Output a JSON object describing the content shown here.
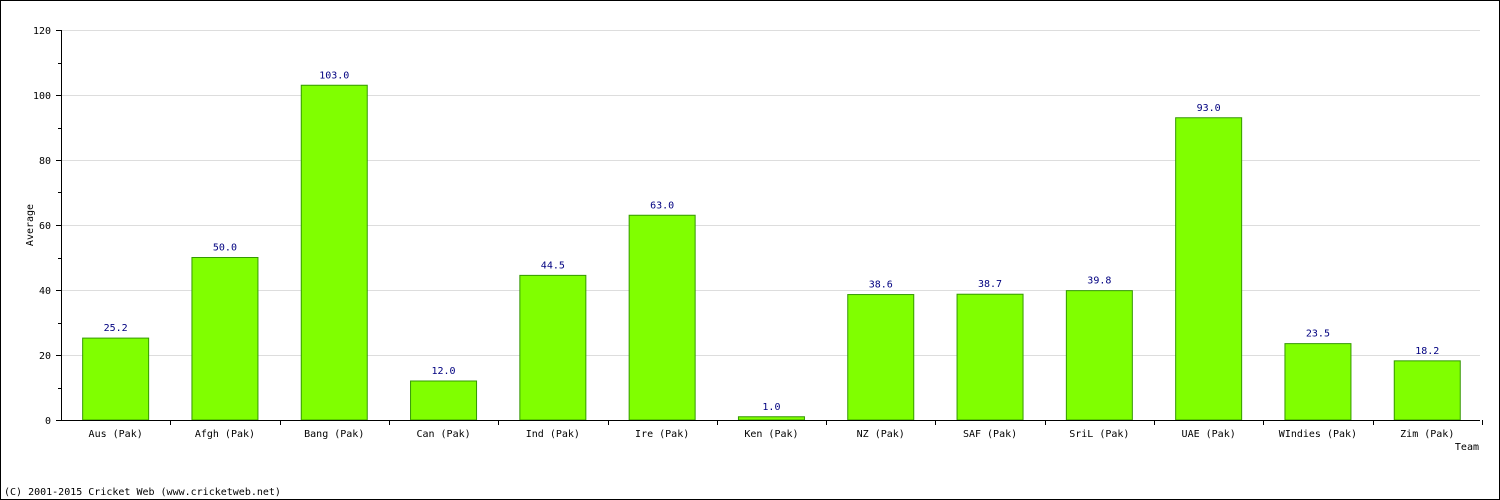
{
  "chart_data": {
    "type": "bar",
    "title": "",
    "xlabel": "Team",
    "ylabel": "Average",
    "ylim": [
      0,
      120
    ],
    "yticks": [
      0,
      20,
      40,
      60,
      80,
      100,
      120
    ],
    "grid": true,
    "categories": [
      "Aus (Pak)",
      "Afgh (Pak)",
      "Bang (Pak)",
      "Can (Pak)",
      "Ind (Pak)",
      "Ire (Pak)",
      "Ken (Pak)",
      "NZ (Pak)",
      "SAF (Pak)",
      "SriL (Pak)",
      "UAE (Pak)",
      "WIndies (Pak)",
      "Zim (Pak)"
    ],
    "values": [
      25.2,
      50.0,
      103.0,
      12.0,
      44.5,
      63.0,
      1.0,
      38.6,
      38.7,
      39.8,
      93.0,
      23.5,
      18.2
    ],
    "value_labels": [
      "25.2",
      "50.0",
      "103.0",
      "12.0",
      "44.5",
      "63.0",
      "1.0",
      "38.6",
      "38.7",
      "39.8",
      "93.0",
      "23.5",
      "18.2"
    ],
    "bar_color": "#80ff00",
    "bar_edge_color": "#339900",
    "value_label_color": "#000080",
    "grid_color": "#dddddd"
  },
  "footer": {
    "copyright": "(C) 2001-2015 Cricket Web (www.cricketweb.net)"
  }
}
